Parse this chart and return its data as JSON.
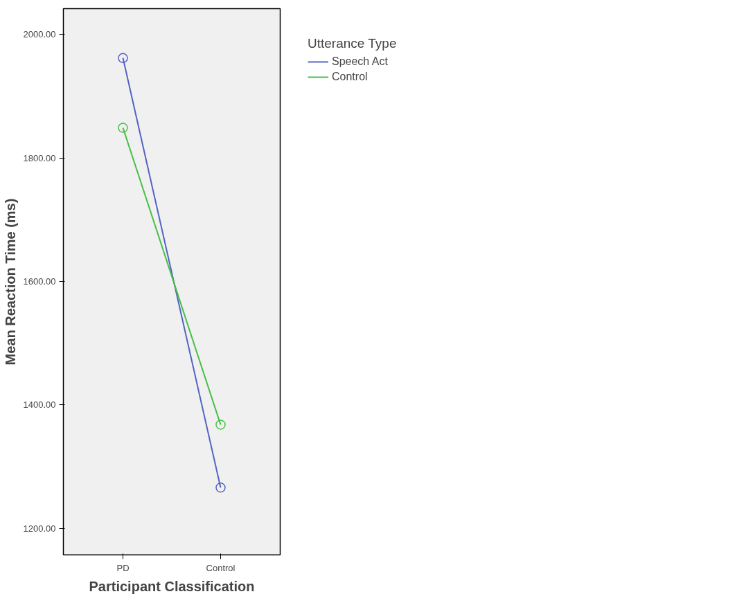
{
  "chart_data": {
    "type": "line",
    "xlabel": "Participant Classification",
    "ylabel": "Mean Reaction Time (ms)",
    "legend_title": "Utterance Type",
    "categories": [
      "PD",
      "Control"
    ],
    "series": [
      {
        "name": "Speech Act",
        "color": "#5463c3",
        "values": [
          1962,
          1266
        ]
      },
      {
        "name": "Control",
        "color": "#46c046",
        "values": [
          1849,
          1368
        ]
      }
    ],
    "ylim": [
      1157,
      2042
    ],
    "yticks": [
      {
        "value": 1200,
        "label": "1200.00"
      },
      {
        "value": 1400,
        "label": "1400.00"
      },
      {
        "value": 1600,
        "label": "1600.00"
      },
      {
        "value": 1800,
        "label": "1800.00"
      },
      {
        "value": 2000,
        "label": "2000.00"
      }
    ],
    "marker": "circle",
    "line_style": "solid",
    "grid": false,
    "legend": "right"
  }
}
